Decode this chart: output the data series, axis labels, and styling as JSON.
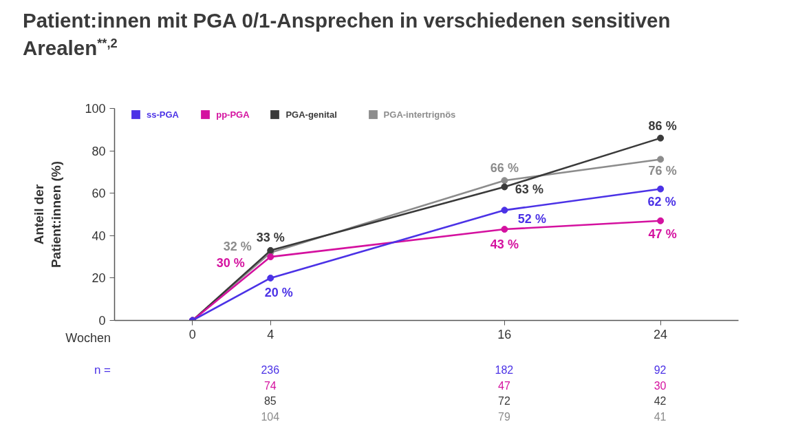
{
  "chart_data": {
    "type": "line",
    "title": "Patient:innen mit PGA 0/1-Ansprechen in verschiedenen sensitiven Arealen$^{**,2}$",
    "xlabel": "Wochen",
    "ylabel": "Anteil der Patient:innen (%)",
    "x": [
      0,
      4,
      16,
      24
    ],
    "xlim": [
      -4,
      28
    ],
    "xticks": [
      0,
      4,
      16,
      24
    ],
    "ylim": [
      0,
      100
    ],
    "yticks": [
      0,
      20,
      40,
      60,
      80,
      100
    ],
    "grid": false,
    "legend": "top left",
    "marker": "circle",
    "line_style": "solid",
    "series": [
      {
        "name": "ss-PGA",
        "color": "#4b32e6",
        "values": [
          0,
          20,
          52,
          62
        ],
        "value_labels": [
          null,
          "20 %",
          "52 %",
          "62 %"
        ]
      },
      {
        "name": "pp-PGA",
        "color": "#d4119f",
        "values": [
          0,
          30,
          43,
          47
        ],
        "value_labels": [
          null,
          "30 %",
          "43 %",
          "47 %"
        ]
      },
      {
        "name": "PGA-genital",
        "color": "#3a3a3a",
        "values": [
          0,
          33,
          63,
          86
        ],
        "value_labels": [
          null,
          "33 %",
          "63 %",
          "86 %"
        ]
      },
      {
        "name": "PGA-intertrignös",
        "color": "#8c8c8c",
        "values": [
          0,
          32,
          66,
          76
        ],
        "value_labels": [
          null,
          "32 %",
          "66 %",
          "76 %"
        ]
      }
    ],
    "annotations": [
      "n =",
      "236",
      "182",
      "92",
      "74",
      "47",
      "30",
      "85",
      "72",
      "42",
      "104",
      "79",
      "41"
    ]
  }
}
